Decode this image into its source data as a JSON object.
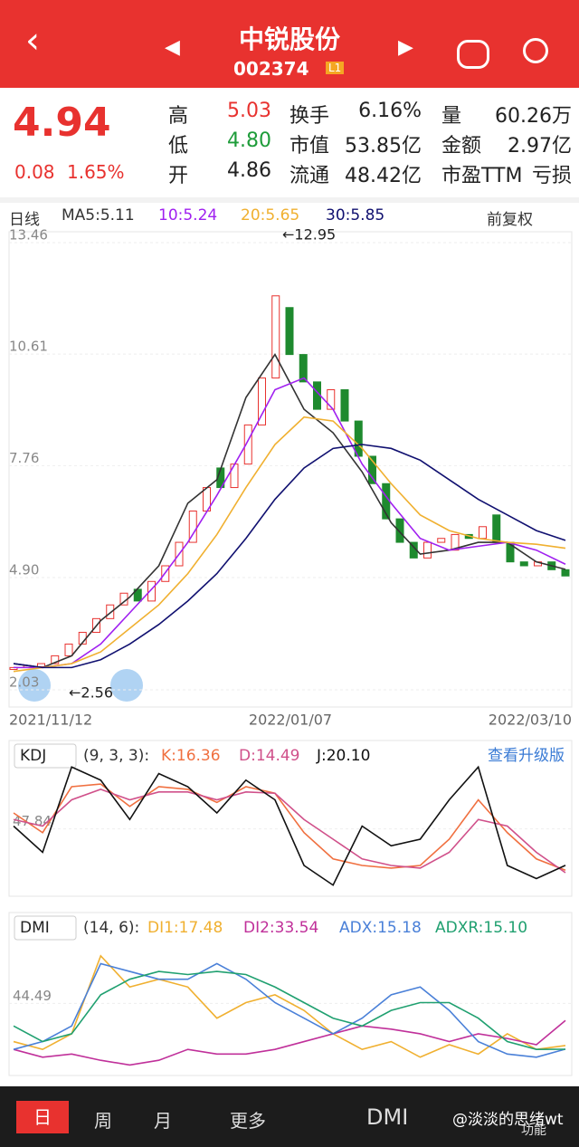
{
  "header": {
    "title": "中锐股份",
    "code": "002374",
    "badge": "L1"
  },
  "quote": {
    "price": "4.94",
    "change": "0.08",
    "change_pct": "1.65%",
    "fields": [
      [
        "高",
        "5.03"
      ],
      [
        "换手",
        "6.16%"
      ],
      [
        "量",
        "60.26万"
      ],
      [
        "低",
        "4.80"
      ],
      [
        "市值",
        "53.85亿"
      ],
      [
        "金额",
        "2.97亿"
      ],
      [
        "开",
        "4.86"
      ],
      [
        "流通",
        "48.42亿"
      ],
      [
        "市盈TTM",
        "亏损"
      ]
    ]
  },
  "legend": {
    "period": "日线",
    "ma5": "MA5:5.11",
    "ma10": "10:5.24",
    "ma20": "20:5.65",
    "ma30": "30:5.85",
    "adjust": "前复权"
  },
  "chart_data": [
    {
      "type": "candlestick",
      "x_labels": [
        "2021/11/12",
        "2022/01/07",
        "2022/03/10"
      ],
      "annotations": [
        "←12.95",
        "←2.56"
      ],
      "ylim": [
        2.03,
        13.46
      ],
      "yticks": [
        13.46,
        10.61,
        7.76,
        {
          "value": 4.9,
          "label": "4.90"
        },
        2.03
      ],
      "open": [
        2.55,
        2.6,
        2.62,
        2.7,
        2.9,
        3.2,
        3.5,
        3.85,
        4.2,
        4.6,
        4.3,
        4.8,
        5.2,
        5.8,
        6.6,
        7.7,
        7.2,
        7.8,
        8.8,
        10.0,
        11.8,
        10.6,
        9.9,
        9.2,
        9.7,
        8.9,
        8.0,
        7.3,
        6.4,
        5.8,
        5.4,
        5.8,
        5.6,
        6.0,
        5.9,
        6.5,
        5.8,
        5.3,
        5.2,
        5.3,
        5.1
      ],
      "close": [
        2.6,
        2.65,
        2.7,
        2.9,
        3.2,
        3.5,
        3.85,
        4.2,
        4.5,
        4.3,
        4.8,
        5.2,
        5.8,
        6.6,
        7.2,
        7.2,
        7.8,
        8.8,
        10.0,
        12.1,
        10.6,
        9.9,
        9.2,
        9.7,
        8.9,
        8.0,
        7.3,
        6.4,
        5.8,
        5.4,
        5.8,
        5.9,
        6.0,
        5.9,
        6.2,
        5.8,
        5.3,
        5.2,
        5.3,
        5.1,
        4.94
      ],
      "up_color": "#e8322f",
      "down_color": "#1e8a2e",
      "series": [
        {
          "name": "MA5",
          "color": "#333333",
          "values": [
            2.7,
            2.6,
            2.9,
            3.8,
            4.4,
            5.2,
            6.8,
            7.4,
            9.5,
            10.6,
            9.2,
            8.6,
            7.6,
            6.3,
            5.5,
            5.6,
            5.8,
            5.8,
            5.3,
            5.11
          ]
        },
        {
          "name": "10",
          "color": "#a020f0",
          "values": [
            2.6,
            2.6,
            2.7,
            3.2,
            4.0,
            4.8,
            5.8,
            7.0,
            8.3,
            9.7,
            10.0,
            9.2,
            7.8,
            6.8,
            5.9,
            5.6,
            5.7,
            5.8,
            5.6,
            5.24
          ]
        },
        {
          "name": "20",
          "color": "#f0b030",
          "values": [
            2.5,
            2.6,
            2.7,
            3.0,
            3.6,
            4.2,
            5.0,
            6.0,
            7.2,
            8.3,
            9.0,
            8.9,
            8.2,
            7.3,
            6.5,
            6.1,
            5.9,
            5.8,
            5.75,
            5.65
          ]
        },
        {
          "name": "30",
          "color": "#101070",
          "values": [
            2.7,
            2.6,
            2.6,
            2.8,
            3.2,
            3.7,
            4.3,
            5.0,
            5.9,
            6.9,
            7.7,
            8.2,
            8.3,
            8.2,
            7.9,
            7.4,
            6.9,
            6.5,
            6.1,
            5.85
          ]
        }
      ]
    },
    {
      "type": "line",
      "title": "KDJ",
      "params": "(9, 3, 3):",
      "button": "查看升级版",
      "ylim": [
        0,
        100
      ],
      "yticks": [
        47.84
      ],
      "series": [
        {
          "name": "K:16.36",
          "color": "#f07040",
          "values": [
            60,
            45,
            80,
            82,
            65,
            80,
            78,
            68,
            80,
            75,
            45,
            25,
            20,
            18,
            20,
            40,
            70,
            45,
            25,
            16.36
          ]
        },
        {
          "name": "D:14.49",
          "color": "#d0508a",
          "values": [
            55,
            50,
            70,
            78,
            70,
            76,
            76,
            70,
            76,
            75,
            55,
            40,
            25,
            20,
            18,
            30,
            55,
            50,
            30,
            14.49
          ]
        },
        {
          "name": "J:20.10",
          "color": "#111111",
          "values": [
            50,
            30,
            95,
            85,
            55,
            90,
            80,
            60,
            85,
            70,
            20,
            5,
            50,
            35,
            40,
            70,
            95,
            20,
            10,
            20.1
          ]
        }
      ]
    },
    {
      "type": "line",
      "title": "DMI",
      "params": "(14, 6):",
      "ylim": [
        0,
        90
      ],
      "yticks": [
        44.49
      ],
      "series": [
        {
          "name": "DI1:17.48",
          "color": "#f0b030",
          "values": [
            20,
            15,
            25,
            75,
            55,
            60,
            55,
            35,
            45,
            50,
            40,
            25,
            15,
            20,
            10,
            18,
            12,
            25,
            15,
            17.48
          ]
        },
        {
          "name": "DI2:33.54",
          "color": "#c0309a",
          "values": [
            15,
            10,
            12,
            8,
            5,
            8,
            15,
            12,
            12,
            15,
            20,
            25,
            30,
            28,
            25,
            20,
            25,
            22,
            18,
            33.54
          ]
        },
        {
          "name": "ADX:15.18",
          "color": "#4a80d8",
          "values": [
            15,
            20,
            30,
            70,
            65,
            60,
            60,
            70,
            60,
            45,
            35,
            25,
            35,
            50,
            55,
            40,
            20,
            12,
            10,
            15.18
          ]
        },
        {
          "name": "ADXR:15.10",
          "color": "#20a070",
          "values": [
            30,
            20,
            25,
            50,
            60,
            65,
            63,
            65,
            63,
            55,
            45,
            35,
            30,
            40,
            45,
            45,
            35,
            20,
            15,
            15.1
          ]
        }
      ]
    }
  ],
  "toolbar": {
    "day": "日",
    "week": "周",
    "month": "月",
    "more": "更多",
    "indicator": "DMI",
    "function": "功能",
    "watermark": "@淡淡的思绪wt"
  }
}
